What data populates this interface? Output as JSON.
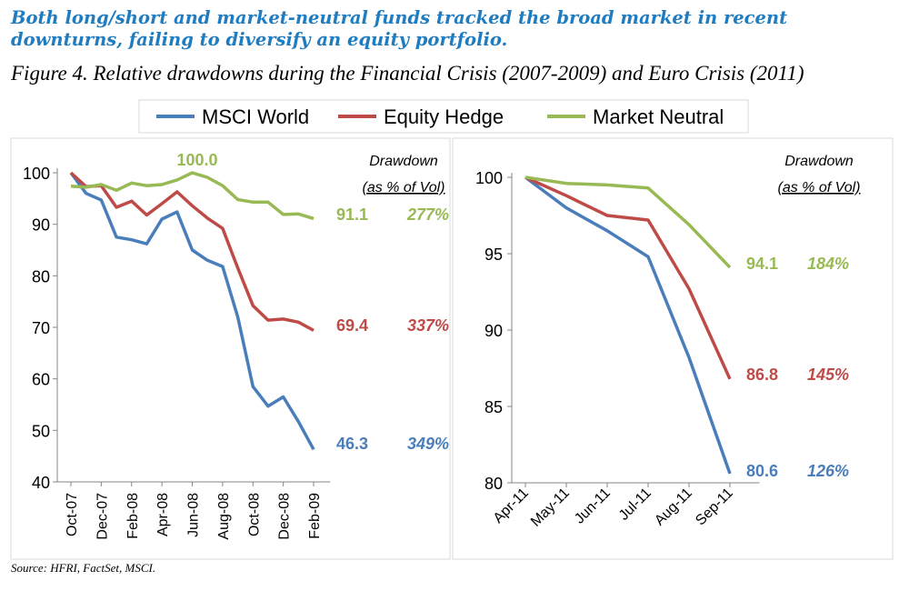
{
  "headline": "Both long/short and market-neutral funds tracked the broad market in recent downturns, failing to diversify an equity portfolio.",
  "figure_title": "Figure 4.  Relative drawdowns during the Financial Crisis (2007-2009) and Euro Crisis (2011)",
  "source": "Source: HFRI, FactSet, MSCI.",
  "legend": [
    {
      "name": "MSCI World",
      "color": "#4A7EBB"
    },
    {
      "name": "Equity Hedge",
      "color": "#BE4B48"
    },
    {
      "name": "Market Neutral",
      "color": "#98B954"
    }
  ],
  "drawdown_header": {
    "line1": "Drawdown",
    "line2": "(as % of Vol)"
  },
  "chart_data": [
    {
      "type": "line",
      "title": "",
      "xlabel": "",
      "ylabel": "",
      "x": [
        "Oct-07",
        "Nov-07",
        "Dec-07",
        "Jan-08",
        "Feb-08",
        "Mar-08",
        "Apr-08",
        "May-08",
        "Jun-08",
        "Jul-08",
        "Aug-08",
        "Sep-08",
        "Oct-08",
        "Nov-08",
        "Dec-08",
        "Jan-09",
        "Feb-09"
      ],
      "x_tick_labels": [
        "Oct-07",
        "Dec-07",
        "Feb-08",
        "Apr-08",
        "Jun-08",
        "Aug-08",
        "Oct-08",
        "Dec-08",
        "Feb-09"
      ],
      "ylim": [
        40,
        100
      ],
      "yticks": [
        40,
        50,
        60,
        70,
        80,
        90,
        100
      ],
      "grid": false,
      "series": [
        {
          "name": "MSCI World",
          "color": "#4A7EBB",
          "values": [
            100,
            96,
            94.7,
            87.5,
            87,
            86.2,
            91,
            92.4,
            85,
            83,
            81.8,
            72,
            58.5,
            54.7,
            56.5,
            51.7,
            46.3
          ],
          "end_label": "46.3",
          "drawdown": "349%"
        },
        {
          "name": "Equity Hedge",
          "color": "#BE4B48",
          "values": [
            100,
            97.3,
            97.5,
            93.3,
            94.5,
            91.8,
            94,
            96.3,
            93.6,
            91.2,
            89.2,
            81.5,
            74.2,
            71.4,
            71.6,
            71,
            69.4
          ],
          "end_label": "69.4",
          "drawdown": "337%"
        },
        {
          "name": "Market Neutral",
          "color": "#98B954",
          "values": [
            97.4,
            97.2,
            97.7,
            96.6,
            98,
            97.5,
            97.7,
            98.6,
            100,
            99.1,
            97.5,
            94.8,
            94.3,
            94.3,
            91.9,
            92,
            91.1
          ],
          "end_label": "91.1",
          "drawdown": "277%",
          "peak_label": "100.0"
        }
      ]
    },
    {
      "type": "line",
      "title": "",
      "xlabel": "",
      "ylabel": "",
      "x": [
        "Apr-11",
        "May-11",
        "Jun-11",
        "Jul-11",
        "Aug-11",
        "Sep-11"
      ],
      "x_tick_labels": [
        "Apr-11",
        "May-11",
        "Jun-11",
        "Jul-11",
        "Aug-11",
        "Sep-11"
      ],
      "ylim": [
        80,
        100
      ],
      "yticks": [
        80,
        85,
        90,
        95,
        100
      ],
      "grid": false,
      "series": [
        {
          "name": "MSCI World",
          "color": "#4A7EBB",
          "values": [
            100,
            98,
            96.5,
            94.8,
            88.2,
            80.6
          ],
          "end_label": "80.6",
          "drawdown": "126%"
        },
        {
          "name": "Equity Hedge",
          "color": "#BE4B48",
          "values": [
            100,
            98.8,
            97.5,
            97.2,
            92.7,
            86.8
          ],
          "end_label": "86.8",
          "drawdown": "145%"
        },
        {
          "name": "Market Neutral",
          "color": "#98B954",
          "values": [
            100,
            99.6,
            99.5,
            99.3,
            96.9,
            94.1
          ],
          "end_label": "94.1",
          "drawdown": "184%"
        }
      ]
    }
  ]
}
